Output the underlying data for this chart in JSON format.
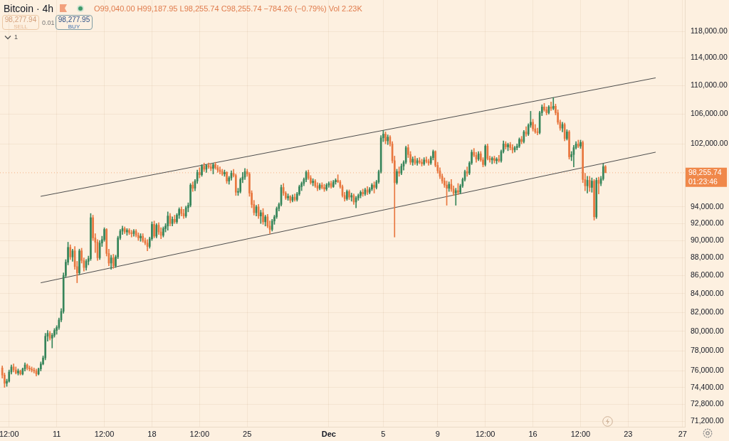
{
  "chart_data": {
    "type": "candlestick",
    "title": "Bitcoin · 4h",
    "subtitle": "O99,040.00 H99,187.95 L98,255.74 C98,255.74 −784.26 (−0.79%) Vol 2.23K",
    "x": [
      "--11-07T00:00",
      "--11-07T04:00",
      "--11-07T08:00",
      "--11-07T12:00",
      "--11-07T16:00",
      "--11-07T20:00",
      "--11-08T00:00",
      "--11-08T04:00",
      "--11-08T08:00",
      "--11-08T12:00",
      "--11-08T16:00",
      "--11-08T20:00",
      "--11-09T00:00",
      "--11-09T04:00",
      "--11-09T08:00",
      "--11-09T12:00",
      "--11-09T16:00",
      "--11-09T20:00",
      "--11-10T00:00",
      "--11-10T04:00",
      "--11-10T08:00",
      "--11-10T12:00",
      "--11-10T16:00",
      "--11-10T20:00",
      "--11-11T00:00",
      "--11-11T04:00",
      "--11-11T08:00",
      "--11-11T12:00",
      "--11-11T16:00",
      "--11-11T20:00",
      "--11-12T00:00",
      "--11-12T04:00",
      "--11-12T08:00",
      "--11-12T12:00",
      "--11-12T16:00",
      "--11-12T20:00",
      "--11-13T00:00",
      "--11-13T04:00",
      "--11-13T08:00",
      "--11-13T12:00",
      "--11-13T16:00",
      "--11-13T20:00",
      "--11-14T00:00",
      "--11-14T04:00",
      "--11-14T08:00",
      "--11-14T12:00",
      "--11-14T16:00",
      "--11-14T20:00",
      "--11-15T00:00",
      "--11-15T04:00",
      "--11-15T08:00",
      "--11-15T12:00",
      "--11-15T16:00",
      "--11-15T20:00",
      "--11-16T00:00",
      "--11-16T04:00",
      "--11-16T08:00",
      "--11-16T12:00",
      "--11-16T16:00",
      "--11-16T20:00",
      "--11-17T00:00",
      "--11-17T04:00",
      "--11-17T08:00",
      "--11-17T12:00",
      "--11-17T16:00",
      "--11-17T20:00",
      "--11-18T00:00",
      "--11-18T04:00",
      "--11-18T08:00",
      "--11-18T12:00",
      "--11-18T16:00",
      "--11-18T20:00",
      "--11-19T00:00",
      "--11-19T04:00",
      "--11-19T08:00",
      "--11-19T12:00",
      "--11-19T16:00",
      "--11-19T20:00",
      "--11-20T00:00",
      "--11-20T04:00",
      "--11-20T08:00",
      "--11-20T12:00",
      "--11-20T16:00",
      "--11-20T20:00",
      "--11-21T00:00",
      "--11-21T04:00",
      "--11-21T08:00",
      "--11-21T12:00",
      "--11-21T16:00",
      "--11-21T20:00",
      "--11-22T00:00",
      "--11-22T04:00",
      "--11-22T08:00",
      "--11-22T12:00",
      "--11-22T16:00",
      "--11-22T20:00",
      "--11-23T00:00",
      "--11-23T04:00",
      "--11-23T08:00",
      "--11-23T12:00",
      "--11-23T16:00",
      "--11-23T20:00",
      "--11-24T00:00",
      "--11-24T04:00",
      "--11-24T08:00",
      "--11-24T12:00",
      "--11-24T16:00",
      "--11-24T20:00",
      "--11-25T00:00",
      "--11-25T04:00",
      "--11-25T08:00",
      "--11-25T12:00",
      "--11-25T16:00",
      "--11-25T20:00",
      "--11-26T00:00",
      "--11-26T04:00",
      "--11-26T08:00",
      "--11-26T12:00",
      "--11-26T16:00",
      "--11-26T20:00",
      "--11-27T00:00",
      "--11-27T04:00",
      "--11-27T08:00",
      "--11-27T12:00",
      "--11-27T16:00",
      "--11-27T20:00",
      "--11-28T00:00",
      "--11-28T04:00",
      "--11-28T08:00",
      "--11-28T12:00",
      "--11-28T16:00",
      "--11-28T20:00",
      "--11-29T00:00",
      "--11-29T04:00",
      "--11-29T08:00",
      "--11-29T12:00",
      "--11-29T16:00",
      "--11-29T20:00",
      "--11-30T00:00",
      "--11-30T04:00",
      "--11-30T08:00",
      "--11-30T12:00",
      "--11-30T16:00",
      "--11-30T20:00",
      "--12-01T00:00",
      "--12-01T04:00",
      "--12-01T08:00",
      "--12-01T12:00",
      "--12-01T16:00",
      "--12-01T20:00",
      "--12-02T00:00",
      "--12-02T04:00",
      "--12-02T08:00",
      "--12-02T12:00",
      "--12-02T16:00",
      "--12-02T20:00",
      "--12-03T00:00",
      "--12-03T04:00",
      "--12-03T08:00",
      "--12-03T12:00",
      "--12-03T16:00",
      "--12-03T20:00",
      "--12-04T00:00",
      "--12-04T04:00",
      "--12-04T08:00",
      "--12-04T12:00",
      "--12-04T16:00",
      "--12-04T20:00",
      "--12-05T00:00",
      "--12-05T04:00",
      "--12-05T08:00",
      "--12-05T12:00",
      "--12-05T16:00",
      "--12-05T20:00",
      "--12-06T00:00",
      "--12-06T04:00",
      "--12-06T08:00",
      "--12-06T12:00",
      "--12-06T16:00",
      "--12-06T20:00",
      "--12-07T00:00",
      "--12-07T04:00",
      "--12-07T08:00",
      "--12-07T12:00",
      "--12-07T16:00",
      "--12-07T20:00",
      "--12-08T00:00",
      "--12-08T04:00",
      "--12-08T08:00",
      "--12-08T12:00",
      "--12-08T16:00",
      "--12-08T20:00",
      "--12-09T00:00",
      "--12-09T04:00",
      "--12-09T08:00",
      "--12-09T12:00",
      "--12-09T16:00",
      "--12-09T20:00",
      "--12-10T00:00",
      "--12-10T04:00",
      "--12-10T08:00",
      "--12-10T12:00",
      "--12-10T16:00",
      "--12-10T20:00",
      "--12-11T00:00",
      "--12-11T04:00",
      "--12-11T08:00",
      "--12-11T12:00",
      "--12-11T16:00",
      "--12-11T20:00",
      "--12-12T00:00",
      "--12-12T04:00",
      "--12-12T08:00",
      "--12-12T12:00",
      "--12-12T16:00",
      "--12-12T20:00",
      "--12-13T00:00",
      "--12-13T04:00",
      "--12-13T08:00",
      "--12-13T12:00",
      "--12-13T16:00",
      "--12-13T20:00",
      "--12-14T00:00",
      "--12-14T04:00",
      "--12-14T08:00",
      "--12-14T12:00",
      "--12-14T16:00",
      "--12-14T20:00",
      "--12-15T00:00",
      "--12-15T04:00",
      "--12-15T08:00",
      "--12-15T12:00",
      "--12-15T16:00",
      "--12-15T20:00",
      "--12-16T00:00",
      "--12-16T04:00",
      "--12-16T08:00",
      "--12-16T12:00",
      "--12-16T16:00",
      "--12-16T20:00",
      "--12-17T00:00",
      "--12-17T04:00",
      "--12-17T08:00",
      "--12-17T12:00",
      "--12-17T16:00",
      "--12-17T20:00",
      "--12-18T00:00",
      "--12-18T04:00",
      "--12-18T08:00",
      "--12-18T12:00",
      "--12-18T16:00",
      "--12-18T20:00",
      "--12-19T00:00",
      "--12-19T04:00",
      "--12-19T08:00",
      "--12-19T12:00",
      "--12-19T16:00",
      "--12-19T20:00",
      "--12-20T00:00",
      "--12-20T04:00",
      "--12-20T08:00",
      "--12-20T12:00",
      "--12-20T16:00",
      "--12-20T20:00",
      "--12-21T00:00",
      "--12-21T04:00",
      "--12-21T08:00"
    ],
    "ohlc": [
      [
        76300,
        76500,
        75300,
        75600
      ],
      [
        75600,
        75800,
        74400,
        74800
      ],
      [
        74800,
        75200,
        74500,
        75000
      ],
      [
        75000,
        76100,
        74900,
        75900
      ],
      [
        75900,
        76600,
        75700,
        76400
      ],
      [
        76400,
        76700,
        75900,
        76100
      ],
      [
        76100,
        76400,
        75700,
        75800
      ],
      [
        75800,
        76200,
        75600,
        76000
      ],
      [
        76000,
        76100,
        75600,
        75700
      ],
      [
        75700,
        76300,
        75600,
        76200
      ],
      [
        76200,
        76800,
        76000,
        76600
      ],
      [
        76600,
        76700,
        76100,
        76300
      ],
      [
        76300,
        76500,
        76000,
        76200
      ],
      [
        76200,
        76400,
        75900,
        76100
      ],
      [
        76100,
        76300,
        75800,
        76000
      ],
      [
        76000,
        76200,
        75500,
        75700
      ],
      [
        75700,
        76300,
        75600,
        76200
      ],
      [
        76200,
        76900,
        76000,
        76700
      ],
      [
        76700,
        77500,
        76600,
        77300
      ],
      [
        77300,
        79800,
        77100,
        79500
      ],
      [
        79500,
        80100,
        79000,
        79800
      ],
      [
        79800,
        80000,
        79100,
        79300
      ],
      [
        79300,
        79800,
        78300,
        79600
      ],
      [
        79600,
        80300,
        79400,
        80100
      ],
      [
        80100,
        80600,
        79700,
        80400
      ],
      [
        80400,
        81400,
        80200,
        81200
      ],
      [
        81200,
        82400,
        81000,
        82100
      ],
      [
        82100,
        86300,
        81900,
        86000
      ],
      [
        86000,
        87800,
        85800,
        87500
      ],
      [
        87500,
        89800,
        87200,
        89200
      ],
      [
        89200,
        89500,
        87800,
        88100
      ],
      [
        88100,
        89000,
        87600,
        88800
      ],
      [
        88800,
        89300,
        86700,
        87000
      ],
      [
        87000,
        87600,
        85200,
        86300
      ],
      [
        86300,
        89000,
        86100,
        88800
      ],
      [
        88800,
        89100,
        87400,
        87700
      ],
      [
        87700,
        88000,
        86500,
        86900
      ],
      [
        86900,
        87800,
        86600,
        87600
      ],
      [
        87600,
        88200,
        87200,
        87900
      ],
      [
        87900,
        93200,
        87700,
        92700
      ],
      [
        92700,
        93000,
        90000,
        90300
      ],
      [
        90300,
        90800,
        88600,
        89800
      ],
      [
        89800,
        90100,
        87700,
        88000
      ],
      [
        88000,
        90000,
        87800,
        89700
      ],
      [
        89700,
        90500,
        89300,
        90100
      ],
      [
        90100,
        91500,
        89900,
        91300
      ],
      [
        91300,
        91400,
        88200,
        88500
      ],
      [
        88500,
        89000,
        87100,
        87400
      ],
      [
        87400,
        88300,
        86700,
        88000
      ],
      [
        88000,
        88400,
        86800,
        87100
      ],
      [
        87100,
        88300,
        86900,
        88100
      ],
      [
        88100,
        90500,
        87900,
        90300
      ],
      [
        90300,
        91300,
        90100,
        91100
      ],
      [
        91100,
        91700,
        90700,
        91400
      ],
      [
        91400,
        91600,
        90800,
        91000
      ],
      [
        91000,
        91400,
        90600,
        91200
      ],
      [
        91200,
        91400,
        90700,
        90900
      ],
      [
        90900,
        91200,
        90400,
        90800
      ],
      [
        90800,
        91300,
        90500,
        91100
      ],
      [
        91100,
        91300,
        90400,
        90600
      ],
      [
        90600,
        90900,
        90000,
        90300
      ],
      [
        90300,
        90800,
        89900,
        90500
      ],
      [
        90500,
        90800,
        89800,
        90000
      ],
      [
        90000,
        90300,
        89500,
        89700
      ],
      [
        89700,
        90100,
        88800,
        89300
      ],
      [
        89300,
        90400,
        89100,
        90200
      ],
      [
        90200,
        92200,
        90000,
        91900
      ],
      [
        91900,
        92300,
        90300,
        90500
      ],
      [
        90500,
        92000,
        90300,
        91800
      ],
      [
        91800,
        92100,
        90700,
        91000
      ],
      [
        91000,
        91500,
        90200,
        90600
      ],
      [
        90600,
        91600,
        90400,
        91400
      ],
      [
        91400,
        92000,
        91000,
        91700
      ],
      [
        91700,
        93400,
        91200,
        92900
      ],
      [
        92900,
        93200,
        91700,
        92000
      ],
      [
        92000,
        92800,
        91700,
        92500
      ],
      [
        92500,
        93000,
        92000,
        92200
      ],
      [
        92200,
        93200,
        92000,
        93000
      ],
      [
        93000,
        93900,
        92600,
        93700
      ],
      [
        93700,
        94000,
        92900,
        93200
      ],
      [
        93200,
        93700,
        92600,
        92900
      ],
      [
        92900,
        94100,
        92700,
        93900
      ],
      [
        93900,
        94500,
        93400,
        94200
      ],
      [
        94200,
        96900,
        94000,
        96700
      ],
      [
        96700,
        97100,
        95900,
        96300
      ],
      [
        96300,
        97400,
        96000,
        97200
      ],
      [
        97200,
        98600,
        96900,
        98300
      ],
      [
        98300,
        98900,
        97600,
        98000
      ],
      [
        98000,
        99300,
        97800,
        99100
      ],
      [
        99100,
        99500,
        98400,
        98700
      ],
      [
        98700,
        99300,
        98300,
        99200
      ],
      [
        99200,
        99500,
        98800,
        99000
      ],
      [
        99000,
        99400,
        98500,
        98800
      ],
      [
        98800,
        99500,
        98100,
        99300
      ],
      [
        99300,
        99600,
        98700,
        98900
      ],
      [
        98900,
        99200,
        98300,
        98600
      ],
      [
        98600,
        99000,
        98100,
        98400
      ],
      [
        98400,
        98700,
        97900,
        98100
      ],
      [
        98100,
        98600,
        97800,
        98300
      ],
      [
        98300,
        98400,
        96900,
        97200
      ],
      [
        97200,
        97800,
        96800,
        97600
      ],
      [
        97600,
        98500,
        97300,
        98200
      ],
      [
        98200,
        98700,
        97700,
        97900
      ],
      [
        97900,
        98100,
        95400,
        95800
      ],
      [
        95800,
        96300,
        95400,
        95900
      ],
      [
        95900,
        97600,
        95700,
        97400
      ],
      [
        97400,
        98300,
        97000,
        97700
      ],
      [
        97700,
        98800,
        97400,
        98400
      ],
      [
        98400,
        98700,
        97800,
        98100
      ],
      [
        98100,
        98300,
        95300,
        95700
      ],
      [
        95700,
        96000,
        93900,
        94300
      ],
      [
        94300,
        94800,
        93000,
        93300
      ],
      [
        93300,
        94200,
        92900,
        94000
      ],
      [
        94000,
        94300,
        92600,
        92900
      ],
      [
        92900,
        93600,
        92000,
        93300
      ],
      [
        93300,
        93800,
        91900,
        92200
      ],
      [
        92200,
        93000,
        91700,
        92800
      ],
      [
        92800,
        93100,
        91500,
        91700
      ],
      [
        91700,
        92300,
        90800,
        91300
      ],
      [
        91300,
        92500,
        91100,
        92300
      ],
      [
        92300,
        93000,
        91900,
        92800
      ],
      [
        92800,
        94000,
        92600,
        93800
      ],
      [
        93800,
        94500,
        93500,
        94300
      ],
      [
        94300,
        96700,
        94100,
        96400
      ],
      [
        96400,
        96900,
        95400,
        95700
      ],
      [
        95700,
        95900,
        94900,
        95100
      ],
      [
        95100,
        95600,
        94800,
        95300
      ],
      [
        95300,
        95400,
        94500,
        94800
      ],
      [
        94800,
        95500,
        94600,
        95200
      ],
      [
        95200,
        95600,
        94700,
        94900
      ],
      [
        94900,
        95800,
        94700,
        95600
      ],
      [
        95600,
        96700,
        95400,
        96500
      ],
      [
        96500,
        97100,
        96000,
        96900
      ],
      [
        96900,
        97600,
        96600,
        97400
      ],
      [
        97400,
        98500,
        97100,
        98300
      ],
      [
        98300,
        98600,
        97400,
        97600
      ],
      [
        97600,
        97900,
        96800,
        97000
      ],
      [
        97000,
        97500,
        96600,
        97200
      ],
      [
        97200,
        97400,
        96400,
        96600
      ],
      [
        96600,
        97000,
        96000,
        96300
      ],
      [
        96300,
        96900,
        96100,
        96700
      ],
      [
        96700,
        97000,
        96200,
        96400
      ],
      [
        96400,
        96800,
        95900,
        96200
      ],
      [
        96200,
        96900,
        96000,
        96700
      ],
      [
        96700,
        97100,
        96400,
        96900
      ],
      [
        96900,
        97200,
        96300,
        96500
      ],
      [
        96500,
        97300,
        96400,
        97100
      ],
      [
        97100,
        97500,
        96800,
        97300
      ],
      [
        97300,
        98000,
        97000,
        97100
      ],
      [
        97100,
        97300,
        96300,
        96500
      ],
      [
        96500,
        96700,
        95200,
        95400
      ],
      [
        95400,
        95800,
        94700,
        95000
      ],
      [
        95000,
        96100,
        94800,
        95900
      ],
      [
        95900,
        96100,
        94900,
        95200
      ],
      [
        95200,
        95700,
        94700,
        95400
      ],
      [
        95400,
        95600,
        94300,
        94600
      ],
      [
        94600,
        95300,
        93900,
        95100
      ],
      [
        95100,
        95600,
        94800,
        95400
      ],
      [
        95400,
        96000,
        95100,
        95800
      ],
      [
        95800,
        96200,
        95300,
        95600
      ],
      [
        95600,
        96300,
        95400,
        96100
      ],
      [
        96100,
        96500,
        95500,
        95800
      ],
      [
        95800,
        96400,
        95600,
        96200
      ],
      [
        96200,
        96900,
        96000,
        96700
      ],
      [
        96700,
        97100,
        95700,
        96400
      ],
      [
        96400,
        97300,
        96200,
        97100
      ],
      [
        97100,
        98600,
        96900,
        98400
      ],
      [
        98400,
        103100,
        98200,
        102800
      ],
      [
        102800,
        103800,
        102300,
        103300
      ],
      [
        103300,
        103600,
        102000,
        102400
      ],
      [
        102400,
        103200,
        101900,
        102900
      ],
      [
        102900,
        103100,
        101700,
        102000
      ],
      [
        102000,
        102300,
        99500,
        99800
      ],
      [
        99800,
        100400,
        90400,
        97000
      ],
      [
        97000,
        98700,
        96800,
        98400
      ],
      [
        98400,
        99000,
        97800,
        98200
      ],
      [
        98200,
        99400,
        98000,
        99100
      ],
      [
        99100,
        99800,
        98600,
        99600
      ],
      [
        99600,
        101700,
        99400,
        101500
      ],
      [
        101500,
        101900,
        100200,
        100600
      ],
      [
        100600,
        101000,
        99300,
        99600
      ],
      [
        99600,
        100300,
        99200,
        100000
      ],
      [
        100000,
        100400,
        99300,
        99500
      ],
      [
        99500,
        100100,
        99200,
        99800
      ],
      [
        99800,
        100200,
        99400,
        99600
      ],
      [
        99600,
        100000,
        99100,
        99400
      ],
      [
        99400,
        100200,
        99200,
        99900
      ],
      [
        99900,
        100300,
        99500,
        99700
      ],
      [
        99700,
        100000,
        99200,
        99500
      ],
      [
        99500,
        100400,
        99300,
        100200
      ],
      [
        100200,
        101200,
        99900,
        101000
      ],
      [
        101000,
        101100,
        99000,
        99200
      ],
      [
        99200,
        99600,
        98200,
        98500
      ],
      [
        98500,
        98900,
        97500,
        97800
      ],
      [
        97800,
        98100,
        96900,
        97200
      ],
      [
        97200,
        97600,
        96400,
        96700
      ],
      [
        96700,
        97200,
        94200,
        96300
      ],
      [
        96300,
        97100,
        95900,
        96800
      ],
      [
        96800,
        97400,
        95900,
        96200
      ],
      [
        96200,
        96600,
        95400,
        95700
      ],
      [
        95700,
        96300,
        94200,
        96000
      ],
      [
        96000,
        96900,
        95500,
        95800
      ],
      [
        95800,
        96800,
        95600,
        96600
      ],
      [
        96600,
        97600,
        96400,
        97400
      ],
      [
        97400,
        98600,
        97200,
        98400
      ],
      [
        98400,
        99000,
        97800,
        98200
      ],
      [
        98200,
        99700,
        98000,
        99500
      ],
      [
        99500,
        101200,
        99300,
        100900
      ],
      [
        100900,
        101400,
        100300,
        100500
      ],
      [
        100500,
        100900,
        99600,
        100000
      ],
      [
        100000,
        101000,
        99800,
        100700
      ],
      [
        100700,
        101000,
        99700,
        99900
      ],
      [
        99900,
        100200,
        99000,
        99300
      ],
      [
        99300,
        101900,
        99100,
        101700
      ],
      [
        101700,
        102000,
        99900,
        100100
      ],
      [
        100100,
        100400,
        99600,
        99900
      ],
      [
        99900,
        100300,
        99400,
        100100
      ],
      [
        100100,
        100400,
        99500,
        99800
      ],
      [
        99800,
        100200,
        99400,
        100000
      ],
      [
        100000,
        100500,
        99600,
        99800
      ],
      [
        99800,
        101200,
        99600,
        101000
      ],
      [
        101000,
        102400,
        100800,
        102000
      ],
      [
        102000,
        102300,
        101300,
        101600
      ],
      [
        101600,
        102100,
        101100,
        101900
      ],
      [
        101900,
        102200,
        101200,
        101500
      ],
      [
        101500,
        101900,
        100800,
        101200
      ],
      [
        101200,
        101700,
        100900,
        101500
      ],
      [
        101500,
        102000,
        101200,
        101700
      ],
      [
        101700,
        102800,
        101500,
        102600
      ],
      [
        102600,
        103000,
        102000,
        102300
      ],
      [
        102300,
        103800,
        102100,
        103600
      ],
      [
        103600,
        104300,
        103000,
        103300
      ],
      [
        103300,
        104700,
        103100,
        104500
      ],
      [
        104500,
        106400,
        104200,
        104900
      ],
      [
        104900,
        105300,
        103700,
        104000
      ],
      [
        104000,
        104600,
        103400,
        103600
      ],
      [
        103600,
        104100,
        103200,
        103500
      ],
      [
        103500,
        106400,
        103300,
        106200
      ],
      [
        106200,
        107300,
        105800,
        107000
      ],
      [
        107000,
        107500,
        106400,
        106600
      ],
      [
        106600,
        107000,
        105900,
        106200
      ],
      [
        106200,
        107200,
        106000,
        107000
      ],
      [
        107000,
        107700,
        106500,
        106800
      ],
      [
        106800,
        108300,
        106600,
        107100
      ],
      [
        107100,
        107400,
        105900,
        106200
      ],
      [
        106200,
        106600,
        104600,
        104900
      ],
      [
        104900,
        105200,
        103800,
        104100
      ],
      [
        104100,
        104900,
        103600,
        104600
      ],
      [
        104600,
        104800,
        102400,
        102700
      ],
      [
        102700,
        103900,
        102500,
        103600
      ],
      [
        103600,
        103800,
        100000,
        100300
      ],
      [
        100300,
        101000,
        99800,
        100600
      ],
      [
        100600,
        101800,
        99000,
        101500
      ],
      [
        101500,
        102300,
        101300,
        102000
      ],
      [
        102000,
        102500,
        101500,
        101700
      ],
      [
        101700,
        102500,
        101400,
        102200
      ],
      [
        102200,
        102400,
        97000,
        97400
      ],
      [
        97400,
        98200,
        96000,
        96600
      ],
      [
        96600,
        97800,
        95700,
        97300
      ],
      [
        97300,
        97800,
        95900,
        96400
      ],
      [
        96400,
        97600,
        95800,
        97200
      ],
      [
        97200,
        97400,
        92400,
        92800
      ],
      [
        92800,
        97600,
        92600,
        97300
      ],
      [
        97300,
        97700,
        95600,
        96900
      ],
      [
        96900,
        97800,
        96600,
        97500
      ],
      [
        97500,
        99400,
        97300,
        99040
      ],
      [
        99040,
        99187.95,
        98255.74,
        98255.74
      ]
    ],
    "colors": [
      "#e8773f",
      "#e8773f",
      "#36855a",
      "#36855a",
      "#36855a",
      "#e8773f",
      "#e8773f",
      "#36855a",
      "#e8773f",
      "#36855a",
      "#36855a",
      "#e8773f",
      "#e8773f",
      "#e8773f",
      "#e8773f",
      "#e8773f",
      "#36855a",
      "#36855a",
      "#36855a",
      "#36855a",
      "#36855a",
      "#e8773f",
      "#36855a",
      "#36855a",
      "#36855a",
      "#36855a",
      "#36855a",
      "#36855a",
      "#36855a",
      "#36855a",
      "#e8773f",
      "#36855a",
      "#e8773f",
      "#e8773f",
      "#36855a",
      "#e8773f",
      "#e8773f",
      "#36855a",
      "#36855a",
      "#36855a",
      "#e8773f",
      "#e8773f",
      "#e8773f",
      "#36855a",
      "#36855a",
      "#36855a",
      "#e8773f",
      "#e8773f",
      "#36855a",
      "#e8773f",
      "#36855a",
      "#36855a",
      "#36855a",
      "#36855a",
      "#e8773f",
      "#36855a",
      "#e8773f",
      "#e8773f",
      "#36855a",
      "#e8773f",
      "#e8773f",
      "#36855a",
      "#e8773f",
      "#e8773f",
      "#e8773f",
      "#36855a",
      "#36855a",
      "#e8773f",
      "#36855a",
      "#e8773f",
      "#e8773f",
      "#36855a",
      "#36855a",
      "#36855a",
      "#e8773f",
      "#36855a",
      "#e8773f",
      "#36855a",
      "#36855a",
      "#e8773f",
      "#e8773f",
      "#36855a",
      "#36855a",
      "#36855a",
      "#e8773f",
      "#36855a",
      "#36855a",
      "#e8773f",
      "#36855a",
      "#e8773f",
      "#36855a",
      "#e8773f",
      "#e8773f",
      "#36855a",
      "#e8773f",
      "#e8773f",
      "#e8773f",
      "#e8773f",
      "#36855a",
      "#e8773f",
      "#36855a",
      "#36855a",
      "#e8773f",
      "#e8773f",
      "#36855a",
      "#36855a",
      "#36855a",
      "#36855a",
      "#e8773f",
      "#e8773f",
      "#e8773f",
      "#e8773f",
      "#36855a",
      "#e8773f",
      "#36855a",
      "#e8773f",
      "#36855a",
      "#e8773f",
      "#e8773f",
      "#36855a",
      "#36855a",
      "#36855a",
      "#36855a",
      "#36855a",
      "#e8773f",
      "#e8773f",
      "#36855a",
      "#e8773f",
      "#36855a",
      "#e8773f",
      "#36855a",
      "#36855a",
      "#36855a",
      "#36855a",
      "#36855a",
      "#e8773f",
      "#e8773f",
      "#36855a",
      "#e8773f",
      "#e8773f",
      "#36855a",
      "#e8773f",
      "#e8773f",
      "#36855a",
      "#36855a",
      "#e8773f",
      "#36855a",
      "#36855a",
      "#e8773f",
      "#e8773f",
      "#e8773f",
      "#e8773f",
      "#36855a",
      "#e8773f",
      "#36855a",
      "#e8773f",
      "#36855a",
      "#36855a",
      "#36855a",
      "#e8773f",
      "#36855a",
      "#e8773f",
      "#36855a",
      "#36855a",
      "#e8773f",
      "#36855a",
      "#36855a",
      "#36855a",
      "#36855a",
      "#e8773f",
      "#36855a",
      "#e8773f",
      "#e8773f",
      "#e8773f",
      "#36855a",
      "#e8773f",
      "#36855a",
      "#36855a",
      "#36855a",
      "#e8773f",
      "#e8773f",
      "#36855a",
      "#e8773f",
      "#36855a",
      "#e8773f",
      "#e8773f",
      "#36855a",
      "#e8773f",
      "#e8773f",
      "#36855a",
      "#36855a",
      "#e8773f",
      "#e8773f",
      "#e8773f",
      "#e8773f",
      "#e8773f",
      "#e8773f",
      "#36855a",
      "#e8773f",
      "#e8773f",
      "#36855a",
      "#e8773f",
      "#36855a",
      "#36855a",
      "#36855a",
      "#e8773f",
      "#36855a",
      "#36855a",
      "#e8773f",
      "#e8773f",
      "#36855a",
      "#e8773f",
      "#e8773f",
      "#36855a",
      "#e8773f",
      "#e8773f",
      "#36855a",
      "#e8773f",
      "#36855a",
      "#e8773f",
      "#36855a",
      "#36855a",
      "#e8773f",
      "#36855a",
      "#e8773f",
      "#e8773f",
      "#36855a",
      "#36855a",
      "#36855a",
      "#e8773f",
      "#36855a",
      "#e8773f",
      "#36855a",
      "#36855a",
      "#e8773f",
      "#e8773f",
      "#e8773f",
      "#36855a",
      "#36855a",
      "#e8773f",
      "#e8773f",
      "#36855a",
      "#e8773f",
      "#36855a",
      "#e8773f",
      "#e8773f",
      "#e8773f",
      "#36855a",
      "#e8773f",
      "#36855a",
      "#e8773f",
      "#36855a",
      "#36855a",
      "#36855a",
      "#e8773f",
      "#36855a",
      "#e8773f",
      "#e8773f",
      "#36855a",
      "#e8773f",
      "#36855a",
      "#e8773f",
      "#36855a",
      "#e8773f",
      "#36855a",
      "#36855a",
      "#e8773f"
    ],
    "series": [
      {
        "type": "line",
        "color": "#4d4d4d",
        "x": [
          "--11-09T20:00",
          "--12-25T00:00"
        ],
        "values": [
          95300,
          111100
        ]
      },
      {
        "type": "line",
        "color": "#4d4d4d",
        "x": [
          "--11-09T20:00",
          "--12-25T00:00"
        ],
        "values": [
          85200,
          100900
        ]
      }
    ],
    "log": true,
    "ylim": [
      70700,
      122900
    ],
    "yticks": [
      {
        "value": 71200,
        "label": "71,200.00"
      },
      {
        "value": 72800,
        "label": "72,800.00"
      },
      {
        "value": 74400,
        "label": "74,400.00"
      },
      {
        "value": 76000,
        "label": "76,000.00"
      },
      {
        "value": 78000,
        "label": "78,000.00"
      },
      {
        "value": 80000,
        "label": "80,000.00"
      },
      {
        "value": 82000,
        "label": "82,000.00"
      },
      {
        "value": 84000,
        "label": "84,000.00"
      },
      {
        "value": 86000,
        "label": "86,000.00"
      },
      {
        "value": 88000,
        "label": "88,000.00"
      },
      {
        "value": 90000,
        "label": "90,000.00"
      },
      {
        "value": 92000,
        "label": "92,000.00"
      },
      {
        "value": 94000,
        "label": "94,000.00"
      },
      {
        "value": 102000,
        "label": "102,000.00"
      },
      {
        "value": 106000,
        "label": "106,000.00"
      },
      {
        "value": 110000,
        "label": "110,000.00"
      },
      {
        "value": 114000,
        "label": "114,000.00"
      },
      {
        "value": 118000,
        "label": "118,000.00"
      }
    ],
    "xlim": [
      "--11-06T20:00",
      "--12-27T04:00"
    ],
    "xticks": [
      {
        "value": "--11-07T12:00",
        "label": "12:00"
      },
      {
        "value": "--11-11",
        "label": "11"
      },
      {
        "value": "--11-14T12:00",
        "label": "12:00"
      },
      {
        "value": "--11-18",
        "label": "18"
      },
      {
        "value": "--11-21T12:00",
        "label": "12:00"
      },
      {
        "value": "--11-25",
        "label": "25"
      },
      {
        "value": "--12-01",
        "label": "Dec"
      },
      {
        "value": "--12-05",
        "label": "5"
      },
      {
        "value": "--12-09",
        "label": "9"
      },
      {
        "value": "--12-12T12:00",
        "label": "12:00"
      },
      {
        "value": "--12-16",
        "label": "16"
      },
      {
        "value": "--12-19T12:00",
        "label": "12:00"
      },
      {
        "value": "--12-23",
        "label": "23"
      },
      {
        "value": "--12-27",
        "label": "27"
      }
    ],
    "grid": true,
    "ref_lines": [
      {
        "axis": "y",
        "value": 98255.74,
        "label": "98,255.74",
        "color": "#f0884a",
        "line_style": "dotted"
      }
    ],
    "annotations": [
      "98,277.94",
      "SELL",
      "0.01",
      "98,277.95",
      "BUY",
      "1",
      "01:23:46"
    ]
  }
}
